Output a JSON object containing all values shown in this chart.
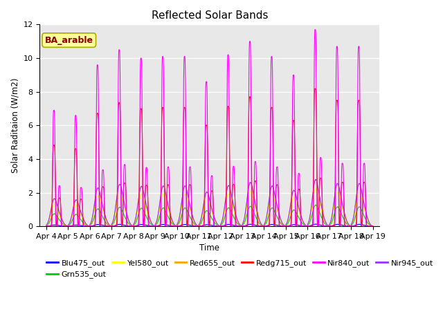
{
  "title": "Reflected Solar Bands",
  "xlabel": "Time",
  "ylabel": "Solar Raditaion (W/m2)",
  "annotation": "BA_arable",
  "annotation_color": "#8B0000",
  "annotation_bg": "#FFFF99",
  "ylim": [
    0,
    12
  ],
  "series": {
    "Blu475_out": {
      "color": "#0000FF",
      "scale": 0.01
    },
    "Grn535_out": {
      "color": "#00CC00",
      "scale": 0.1
    },
    "Yel580_out": {
      "color": "#FFFF00",
      "scale": 0.175
    },
    "Red655_out": {
      "color": "#FFA500",
      "scale": 0.22
    },
    "Redg715_out": {
      "color": "#FF0000",
      "scale": 0.7
    },
    "Nir840_out": {
      "color": "#FF00FF",
      "scale": 1.0
    },
    "Nir945_out": {
      "color": "#9933FF",
      "scale": 0.22
    }
  },
  "legend_order": [
    "Blu475_out",
    "Grn535_out",
    "Yel580_out",
    "Red655_out",
    "Redg715_out",
    "Nir840_out",
    "Nir945_out"
  ],
  "tick_labels": [
    "Apr 4",
    "Apr 5",
    "Apr 6",
    "Apr 7",
    "Apr 8",
    "Apr 9",
    "Apr 10",
    "Apr 11",
    "Apr 12",
    "Apr 13",
    "Apr 14",
    "Apr 15",
    "Apr 16",
    "Apr 17",
    "Apr 18",
    "Apr 19"
  ],
  "tick_positions": [
    0,
    1,
    2,
    3,
    4,
    5,
    6,
    7,
    8,
    9,
    10,
    11,
    12,
    13,
    14,
    15
  ],
  "daily_peaks_nir840": [
    6.9,
    6.6,
    9.6,
    10.5,
    10.0,
    10.1,
    10.1,
    8.6,
    10.2,
    11.0,
    10.1,
    9.0,
    11.7,
    10.7,
    10.7
  ],
  "bg_color": "#E8E8E8",
  "plot_bg": "#E8E8E8",
  "grid_color": "white",
  "lw": 0.8
}
